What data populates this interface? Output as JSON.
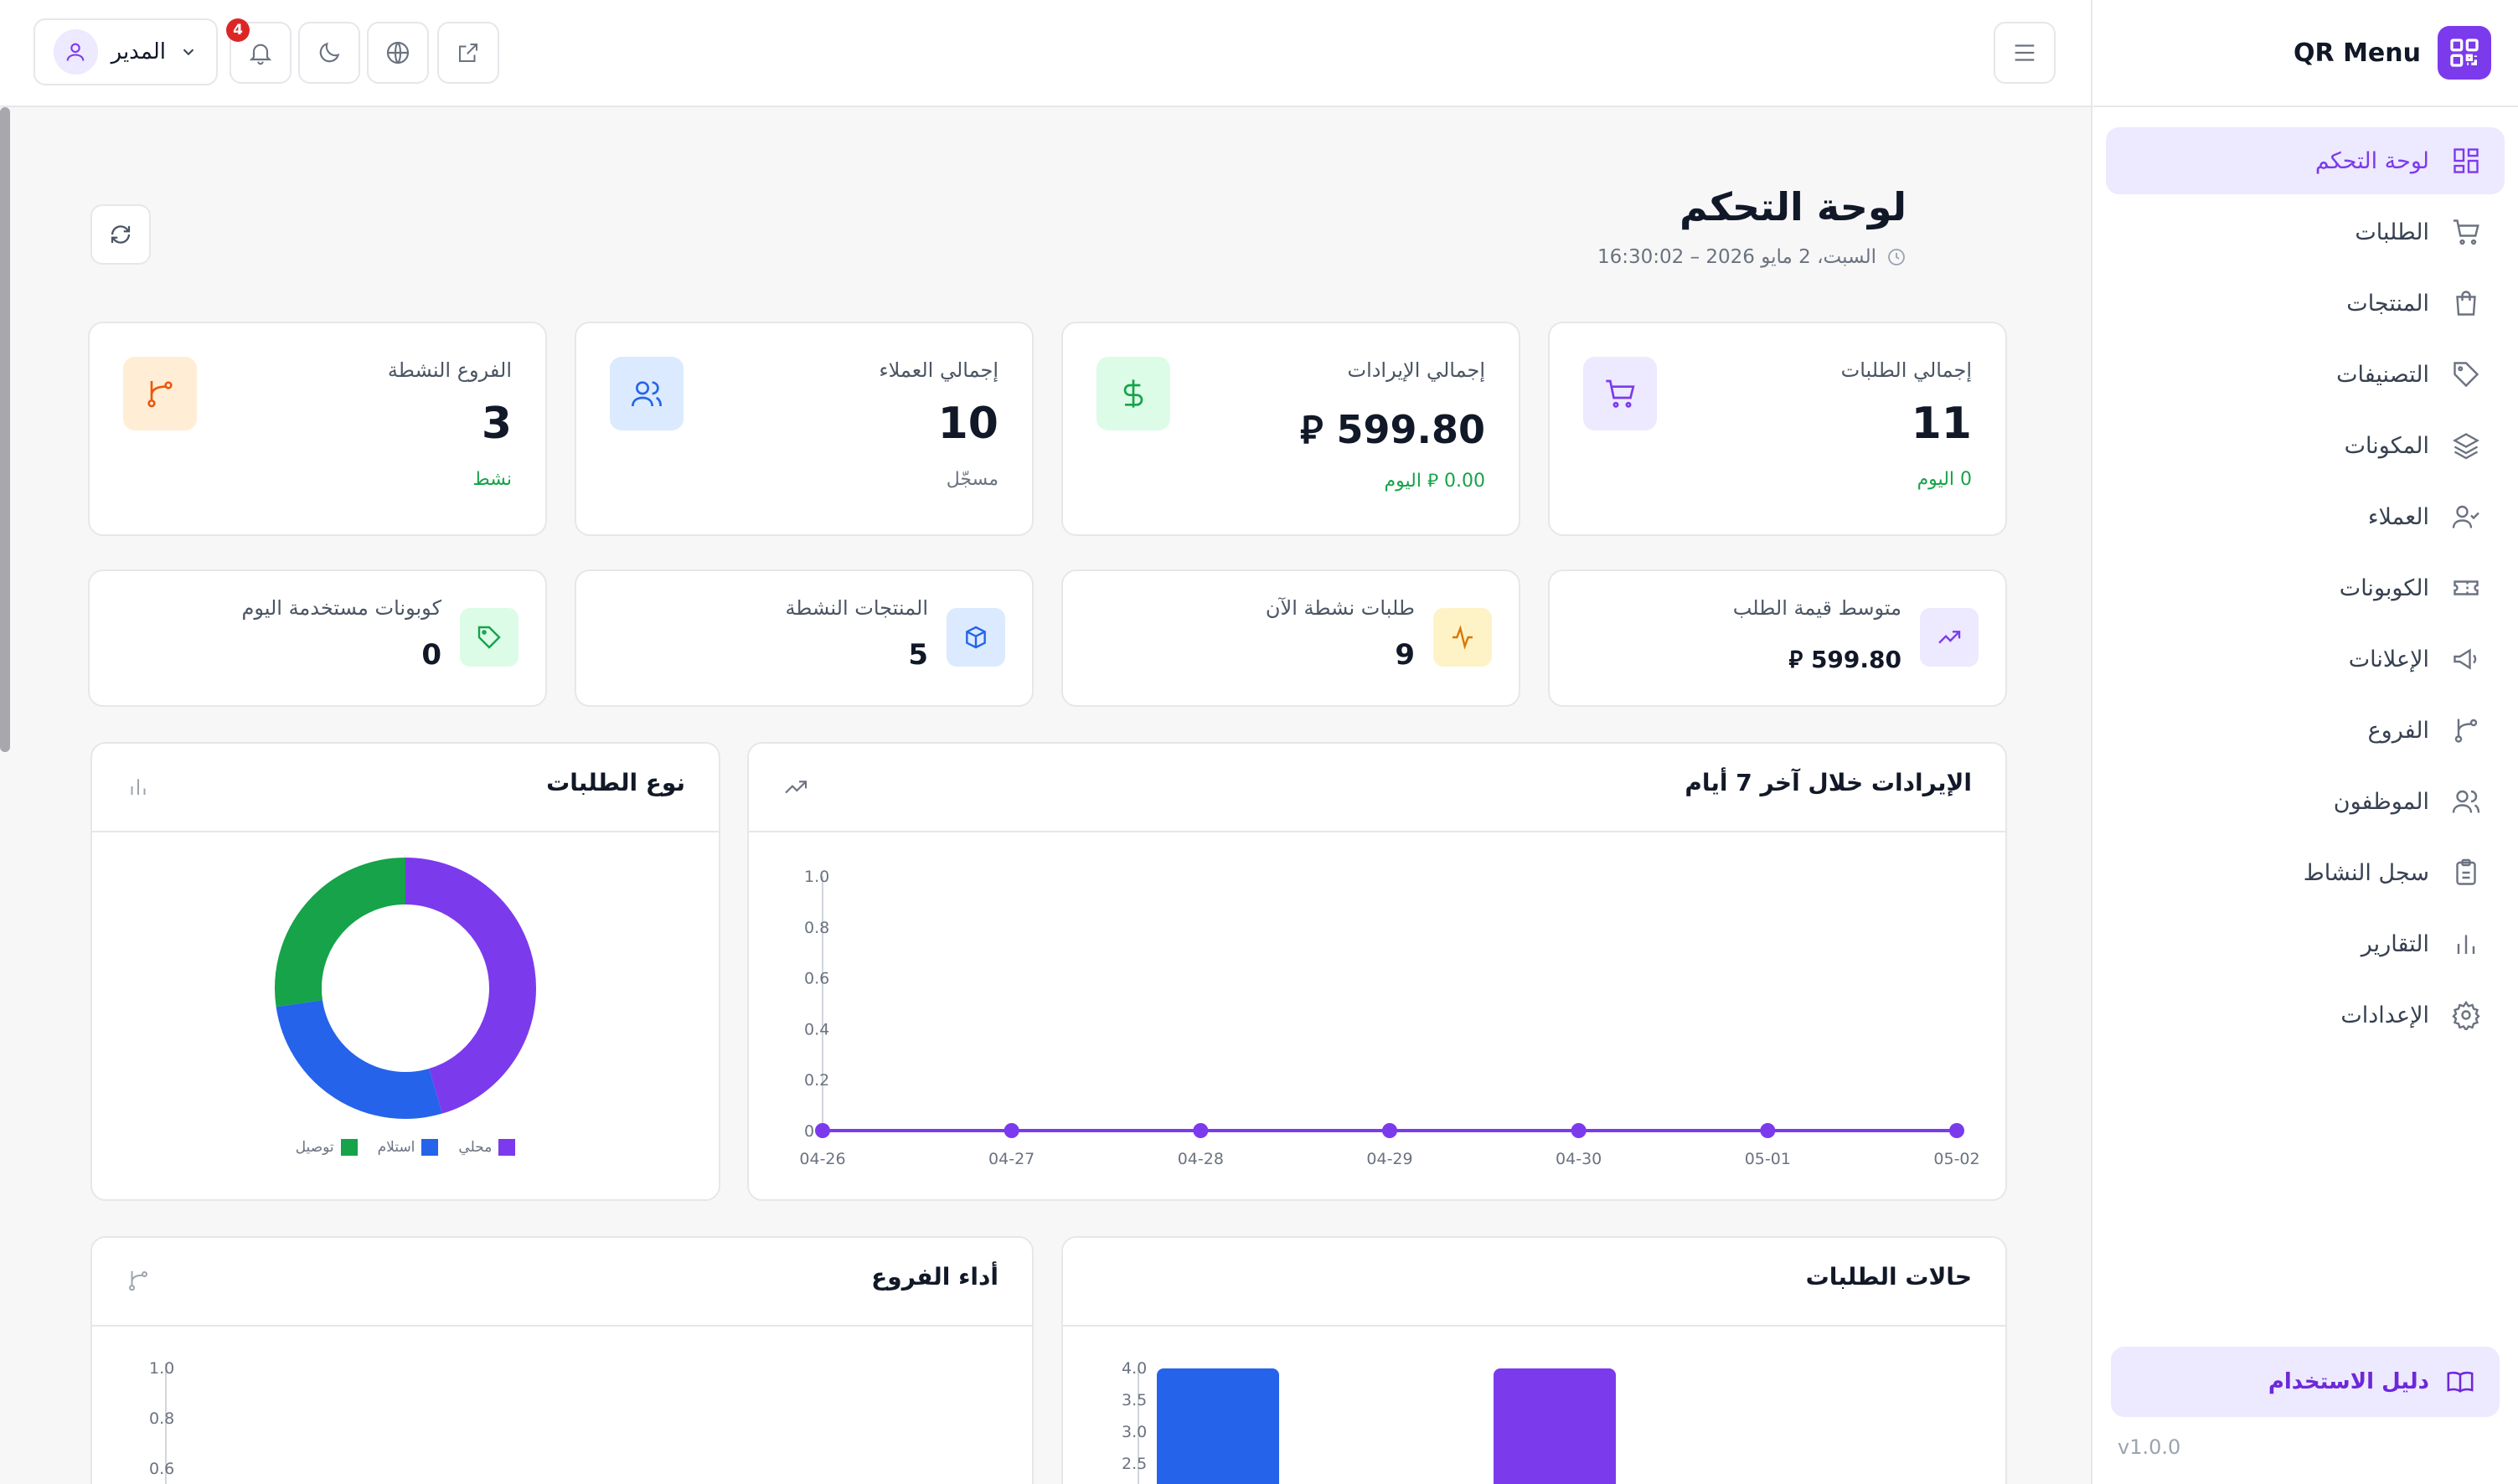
{
  "sidebar": {
    "brand": "QR Menu",
    "items": [
      {
        "label": "لوحة التحكم",
        "icon": "dashboard-icon",
        "active": true
      },
      {
        "label": "الطلبات",
        "icon": "cart-icon"
      },
      {
        "label": "المنتجات",
        "icon": "bag-icon"
      },
      {
        "label": "التصنيفات",
        "icon": "tag-icon"
      },
      {
        "label": "المكونات",
        "icon": "layers-icon"
      },
      {
        "label": "العملاء",
        "icon": "user-check-icon"
      },
      {
        "label": "الكوبونات",
        "icon": "ticket-icon"
      },
      {
        "label": "الإعلانات",
        "icon": "megaphone-icon"
      },
      {
        "label": "الفروع",
        "icon": "branch-icon"
      },
      {
        "label": "الموظفون",
        "icon": "users-icon"
      },
      {
        "label": "سجل النشاط",
        "icon": "clipboard-icon"
      },
      {
        "label": "التقارير",
        "icon": "bar-chart-icon"
      },
      {
        "label": "الإعدادات",
        "icon": "gear-icon"
      }
    ],
    "guide_label": "دليل الاستخدام",
    "version": "v1.0.0"
  },
  "header": {
    "user_name": "المدير",
    "notification_count": "4"
  },
  "page": {
    "title": "لوحة التحكم",
    "datetime": "السبت، 2 مايو 2026 – 16:30:02"
  },
  "stats": [
    {
      "label": "إجمالي الطلبات",
      "value": "11",
      "sub": "0 اليوم",
      "icon": "cart-icon",
      "accent": "#7c3aed"
    },
    {
      "label": "إجمالي الإيرادات",
      "value": "599.80 ⃁",
      "sub": "0.00 ⃁ اليوم",
      "icon": "dollar-icon",
      "accent": "#16a34a"
    },
    {
      "label": "إجمالي العملاء",
      "value": "10",
      "sub": "مسجّل",
      "icon": "users-icon",
      "accent": "#2563eb"
    },
    {
      "label": "الفروع النشطة",
      "value": "3",
      "sub": "نشط",
      "icon": "branch-icon",
      "accent": "#ea580c"
    }
  ],
  "mini_stats": [
    {
      "label": "متوسط قيمة الطلب",
      "value": "599.80 ⃁",
      "icon": "trending-up-icon"
    },
    {
      "label": "طلبات نشطة الآن",
      "value": "9",
      "icon": "activity-icon"
    },
    {
      "label": "المنتجات النشطة",
      "value": "5",
      "icon": "box-icon"
    },
    {
      "label": "كوبونات مستخدمة اليوم",
      "value": "0",
      "icon": "tag-icon"
    }
  ],
  "charts": {
    "revenue_title": "الإيرادات خلال آخر 7 أيام",
    "order_type_title": "نوع الطلبات",
    "order_status_title": "حالات الطلبات",
    "branch_perf_title": "أداء الفروع"
  },
  "chart_data": [
    {
      "type": "line",
      "title": "الإيرادات خلال آخر 7 أيام",
      "x": [
        "04-26",
        "04-27",
        "04-28",
        "04-29",
        "04-30",
        "05-01",
        "05-02"
      ],
      "series": [
        {
          "values": [
            0,
            0,
            0,
            0,
            0,
            0,
            0
          ],
          "color": "#7c3aed"
        }
      ],
      "yticks": [
        "1.0",
        "0.8",
        "0.6",
        "0.4",
        "0.2",
        "0"
      ],
      "ylim": [
        0,
        1
      ]
    },
    {
      "type": "pie",
      "title": "نوع الطلبات",
      "labels": [
        "محلي",
        "استلام",
        "توصيل"
      ],
      "colors": [
        "#7c3aed",
        "#2563eb",
        "#16a34a"
      ],
      "values": [
        5,
        3,
        3
      ]
    },
    {
      "type": "bar",
      "title": "حالات الطلبات",
      "series": [
        {
          "values": [
            4,
            4
          ],
          "colors": [
            "#2563eb",
            "#7c3aed"
          ]
        }
      ],
      "yticks": [
        "4.0",
        "3.5",
        "3.0",
        "2.5"
      ]
    },
    {
      "type": "bar",
      "title": "أداء الفروع",
      "yticks": [
        "1.0",
        "0.8",
        "0.6"
      ]
    }
  ]
}
